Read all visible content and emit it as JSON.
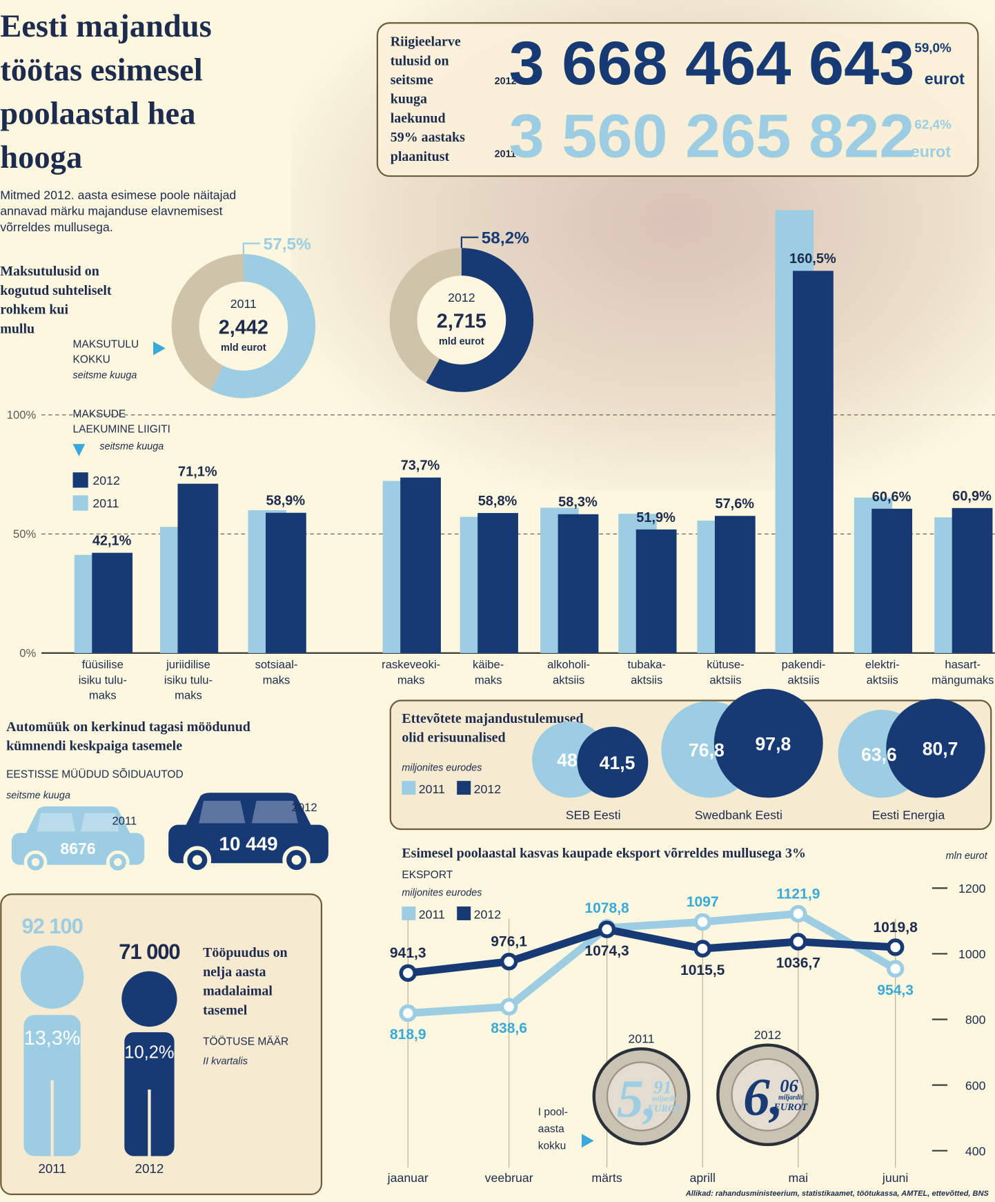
{
  "header": {
    "title": [
      "Eesti majandus",
      "töötas esimesel",
      "poolaastal hea",
      "hooga"
    ],
    "subtitle": [
      "Mitmed 2012. aasta esimese poole näitajad",
      "annavad märku majanduse elavnemisest",
      "võrreldes mullusega."
    ]
  },
  "budget": {
    "label": [
      "Riigieelarve",
      "tulusid on",
      "seitsme",
      "kuuga",
      "laekunud",
      "59% aastaks",
      "plaanitust"
    ],
    "rows": [
      {
        "year": "2012",
        "amount": "3 668 464 643",
        "percent": "59,0%",
        "unit": "eurot",
        "color": "#173a75"
      },
      {
        "year": "2011",
        "amount": "3 560 265 822",
        "percent": "62,4%",
        "unit": "eurot",
        "color": "#9ccde2"
      }
    ]
  },
  "chart_data": [
    {
      "type": "donut",
      "title": [
        "Maksutulusid on",
        "kogutud suhteliselt",
        "rohkem kui",
        "mullu"
      ],
      "label": [
        "MAKSUTULU",
        "KOKKU"
      ],
      "sublabel": "seitsme kuuga",
      "rest_color": "#cfc3aa",
      "donuts": [
        {
          "year": "2011",
          "value": 57.5,
          "value_label": "57,5%",
          "total": "2,442",
          "unit": "mld eurot",
          "color": "#9ccde2"
        },
        {
          "year": "2012",
          "value": 58.2,
          "value_label": "58,2%",
          "total": "2,715",
          "unit": "mld eurot",
          "color": "#173a75"
        }
      ]
    },
    {
      "type": "bar",
      "label": [
        "MAKSUDE",
        "LAEKUMINE LIIGITI"
      ],
      "sublabel": "seitsme kuuga",
      "categories": [
        [
          "füüsilise",
          "isiku tulu-",
          "maks"
        ],
        [
          "juriidilise",
          "isiku tulu-",
          "maks"
        ],
        [
          "sotsiaal-",
          "maks"
        ],
        [
          "raskeveoki-",
          "maks"
        ],
        [
          "käibe-",
          "maks"
        ],
        [
          "alkoholi-",
          "aktsiis"
        ],
        [
          "tubaka-",
          "aktsiis"
        ],
        [
          "kütuse-",
          "aktsiis"
        ],
        [
          "pakendi-",
          "aktsiis"
        ],
        [
          "elektri-",
          "aktsiis"
        ],
        [
          "hasart-",
          "mängumaks"
        ]
      ],
      "series": [
        {
          "name": "2012",
          "color": "#173a75",
          "values": [
            42.1,
            71.1,
            58.9,
            73.7,
            58.8,
            58.3,
            51.9,
            57.6,
            160.5,
            60.6,
            60.9
          ],
          "value_labels": [
            "42,1%",
            "71,1%",
            "58,9%",
            "73,7%",
            "58,8%",
            "58,3%",
            "51,9%",
            "57,6%",
            "160,5%",
            "60,6%",
            "60,9%"
          ]
        },
        {
          "name": "2011",
          "color": "#9ccde2",
          "values": [
            41.2,
            53,
            60,
            72.3,
            57.2,
            61,
            58.5,
            55.6,
            186,
            65.3,
            57
          ]
        }
      ],
      "ylim": [
        0,
        190
      ],
      "yticks": [
        {
          "value": 0,
          "label": "0%"
        },
        {
          "value": 50,
          "label": "50%"
        },
        {
          "value": 100,
          "label": "100%"
        }
      ]
    },
    {
      "type": "car",
      "title": [
        "Automüük on kerkinud tagasi möödunud",
        "kümnendi keskpaiga tasemele"
      ],
      "label": "EESTISSE MÜÜDUD SÕIDUAUTOD",
      "sublabel": "seitsme kuuga",
      "items": [
        {
          "name": "2011",
          "value": 8676,
          "value_label": "8676",
          "color": "#9ccde2"
        },
        {
          "name": "2012",
          "value": 10449,
          "value_label": "10 449",
          "color": "#173a75"
        }
      ]
    },
    {
      "type": "person",
      "title": [
        "Tööpuudus on",
        "nelja aasta",
        "madalaimal",
        "tasemel"
      ],
      "label": "TÖÖTUSE MÄÄR",
      "sublabel": "II kvartalis",
      "items": [
        {
          "name": "2011",
          "value": 92100,
          "value_label": "92 100",
          "rate": "13,3%",
          "color": "#9ccde2"
        },
        {
          "name": "2012",
          "value": 71000,
          "value_label": "71 000",
          "rate": "10,2%",
          "color": "#173a75"
        }
      ]
    },
    {
      "type": "bubble",
      "title": [
        "Ettevõtete majandustulemused",
        "olid erisuunalised"
      ],
      "sublabel": "miljonites eurodes",
      "categories": [
        "SEB Eesti",
        "Swedbank Eesti",
        "Eesti Energia"
      ],
      "series": [
        {
          "name": "2011",
          "color": "#9ccde2",
          "values": [
            48,
            76.8,
            63.6
          ],
          "value_labels": [
            "48",
            "76,8",
            "63,6"
          ]
        },
        {
          "name": "2012",
          "color": "#173a75",
          "values": [
            41.5,
            97.8,
            80.7
          ],
          "value_labels": [
            "41,5",
            "97,8",
            "80,7"
          ]
        }
      ]
    },
    {
      "type": "line",
      "title": "Esimesel poolaastal kasvas kaupade eksport võrreldes mullusega 3%",
      "label": "EKSPORT",
      "sublabel": "miljonites eurodes",
      "y_unit": "mln eurot",
      "categories": [
        "jaanuar",
        "veebruar",
        "märts",
        "aprill",
        "mai",
        "juuni"
      ],
      "series": [
        {
          "name": "2011",
          "color": "#9ccde2",
          "values": [
            818.9,
            838.6,
            1078.8,
            1097,
            1121.9,
            954.3
          ],
          "value_labels": [
            "818,9",
            "838,6",
            "1078,8",
            "1097",
            "1121,9",
            "954,3"
          ]
        },
        {
          "name": "2012",
          "color": "#173a75",
          "values": [
            941.3,
            976.1,
            1074.3,
            1015.5,
            1036.7,
            1019.8
          ],
          "value_labels": [
            "941,3",
            "976,1",
            "1074,3",
            "1015,5",
            "1036,7",
            "1019,8"
          ]
        }
      ],
      "ylim": [
        400,
        1200
      ],
      "yticks": [
        400,
        600,
        800,
        1000,
        1200
      ],
      "coins": {
        "label": [
          "I pool-",
          "aasta",
          "kokku"
        ],
        "items": [
          {
            "year": "2011",
            "whole": "5,",
            "fraction": "91",
            "unit": [
              "miljardit",
              "EUROT"
            ],
            "color": "#9ccde2"
          },
          {
            "year": "2012",
            "whole": "6,",
            "fraction": "06",
            "unit": [
              "miljardit",
              "EUROT"
            ],
            "color": "#173a75"
          }
        ]
      }
    }
  ],
  "source": "Allikad: rahandusministeerium, statistikaamet, töötukassa, AMTEL, ettevõtted, BNS"
}
